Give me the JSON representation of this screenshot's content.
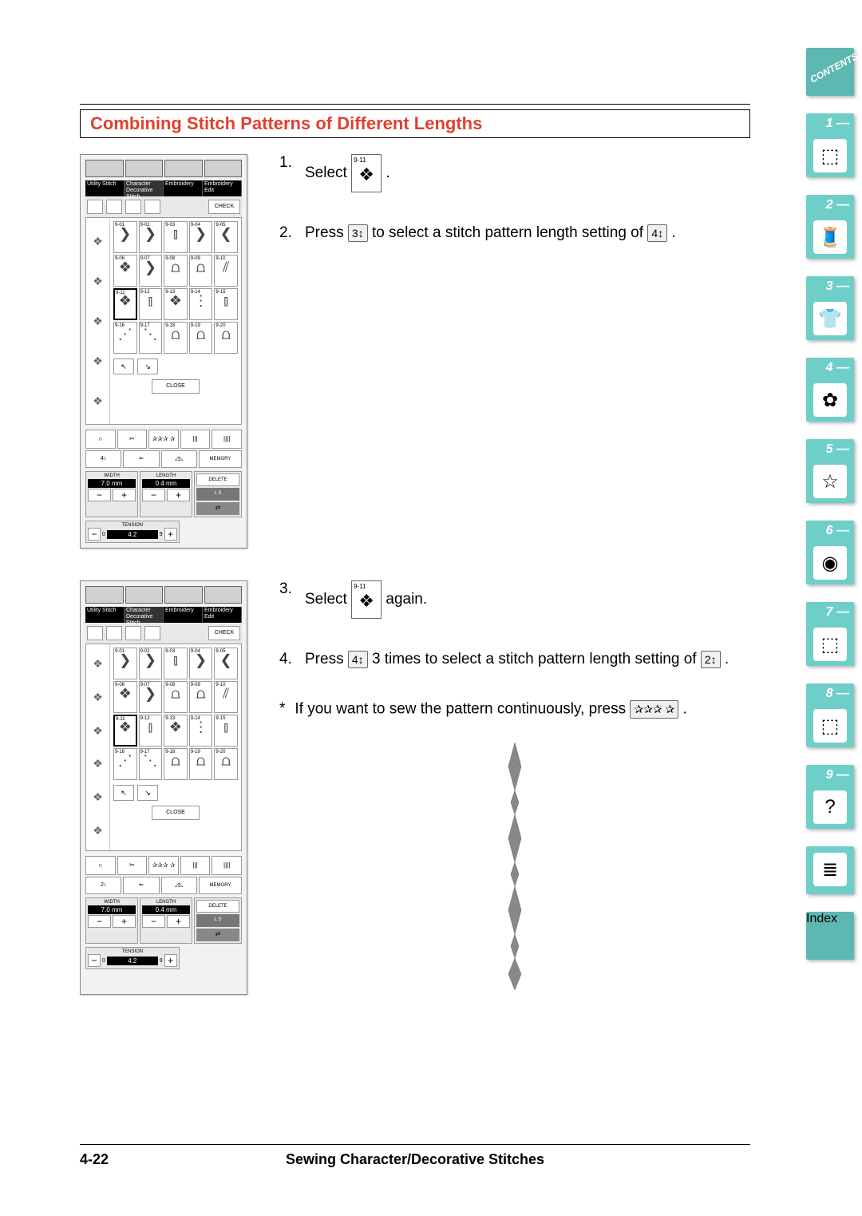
{
  "section_title": "Combining Stitch Patterns of Different Lengths",
  "footer": {
    "page": "4-22",
    "chapter": "Sewing Character/Decorative Stitches"
  },
  "tabs": {
    "contents_label": "CONTENTS",
    "index_label": "Index",
    "items": [
      "1 —",
      "2 —",
      "3 —",
      "4 —",
      "5 —",
      "6 —",
      "7 —",
      "8 —",
      "9 —"
    ]
  },
  "screen": {
    "mode_tabs": [
      "Utility Stitch",
      "Character Decorative Stitch",
      "Embroidery",
      "Embroidery Edit"
    ],
    "check_label": "CHECK",
    "close_label": "CLOSE",
    "memory_label": "MEMORY",
    "delete_label": "DELETE",
    "ls_label": "L   S",
    "width_label": "WIDTH",
    "width_value": "7.0 mm",
    "length_label": "LENGTH",
    "length_value": "0.4 mm",
    "tension_label": "TENSION",
    "tension_value": "4.2",
    "tension_min": "0",
    "tension_max": "9",
    "stitch_numbers": [
      "9-01",
      "9-02",
      "9-03",
      "9-04",
      "9-05",
      "9-06",
      "9-07",
      "9-08",
      "9-09",
      "9-10",
      "9-11",
      "9-12",
      "9-13",
      "9-14",
      "9-15",
      "9-16",
      "9-17",
      "9-18",
      "9-19",
      "9-20"
    ],
    "selected_stitch": "9-11",
    "nav_prev": "↖",
    "nav_next": "↘"
  },
  "steps": {
    "s1_num": "1.",
    "s1_text_a": "Select",
    "s1_text_b": ".",
    "s1_icon_label": "9-11",
    "s2_num": "2.",
    "s2_text_a": "Press",
    "s2_text_b": "to select a stitch pattern length setting of",
    "s2_text_c": ".",
    "s2_icon_a": "3↕",
    "s2_icon_b": "4↕",
    "s3_num": "3.",
    "s3_text_a": "Select",
    "s3_text_b": "again.",
    "s3_icon_label": "9-11",
    "s4_num": "4.",
    "s4_text_a": "Press",
    "s4_text_b": "3 times to select a stitch pattern length setting of",
    "s4_text_c": ".",
    "s4_icon_a": "4↕",
    "s4_icon_b": "2↕",
    "note_star": "*",
    "note_text_a": "If you want to sew the pattern continuously, press",
    "note_text_b": ".",
    "note_icon": "✰✰✰ ✰"
  }
}
